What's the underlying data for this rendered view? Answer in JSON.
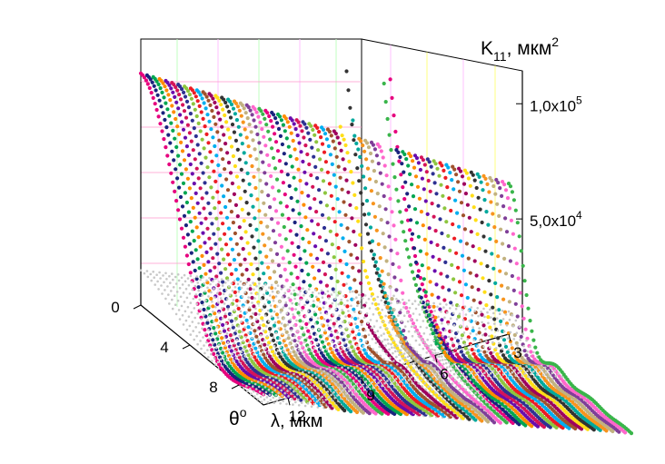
{
  "chart_data": {
    "type": "scatter",
    "dimensions": "3d-waterfall",
    "axes": {
      "z": {
        "label_base": "K",
        "label_sub": "11",
        "label_unit": ", мкм",
        "label_sup": "2",
        "ticks": [
          {
            "value": 50000,
            "mantissa": "5,0x10",
            "exp": "4"
          },
          {
            "value": 100000,
            "mantissa": "1,0x10",
            "exp": "5"
          }
        ]
      },
      "theta": {
        "label": "θ",
        "label_sup": "o",
        "ticks": [
          "0",
          "4",
          "8"
        ],
        "range": [
          0,
          10
        ]
      },
      "lambda": {
        "label": "λ, мкм",
        "ticks": [
          "3",
          "6",
          "9",
          "12"
        ],
        "range": [
          3,
          13
        ]
      }
    },
    "surface_peaks": [
      {
        "theta": 0,
        "lambda": 13,
        "k11": 100000
      },
      {
        "theta": 0,
        "lambda": 8,
        "k11": 110000
      },
      {
        "theta": 0,
        "lambda": 6,
        "k11": 115000
      }
    ],
    "grid": true,
    "marker_colors": [
      "#e6007e",
      "#1a237e",
      "#00a651",
      "#ff8c00",
      "#6a0dad",
      "#d4145a",
      "#2e3192",
      "#8dc63f",
      "#ed1c24",
      "#00aeef",
      "#a0522d",
      "#9e005d",
      "#ffde17",
      "#333333",
      "#00a99d",
      "#f7941d",
      "#c2b280",
      "#7f3f98",
      "#ff66cc",
      "#39b54a"
    ]
  }
}
